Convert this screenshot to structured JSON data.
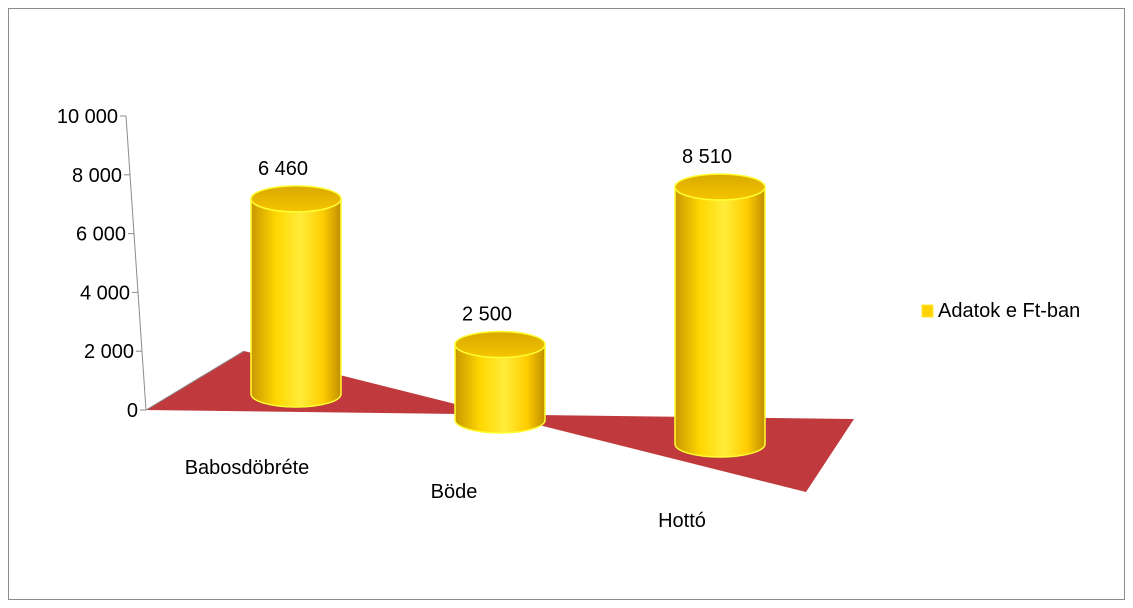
{
  "chart_data": {
    "type": "bar",
    "style": "3d-cylinder",
    "categories": [
      "Babosdöbréte",
      "Böde",
      "Hottó"
    ],
    "series": [
      {
        "name": "Adatok e Ft-ban",
        "values": [
          6460,
          2500,
          8510
        ]
      }
    ],
    "data_labels": [
      "6 460",
      "2 500",
      "8 510"
    ],
    "y_tick_labels": [
      "0",
      "2 000",
      "4 000",
      "6 000",
      "8 000",
      "10 000"
    ],
    "y_ticks": [
      0,
      2000,
      4000,
      6000,
      8000,
      10000
    ],
    "ylim": [
      0,
      10000
    ],
    "title": "",
    "xlabel": "",
    "ylabel": "",
    "grid": false,
    "legend": "right",
    "colors": {
      "bar": "#ffd200",
      "bar_edge": "#ffff33",
      "bar_top": "#e6b800",
      "floor": "#c0393c",
      "axis": "#8c8c8c",
      "frame": "#8c8c8c"
    }
  }
}
